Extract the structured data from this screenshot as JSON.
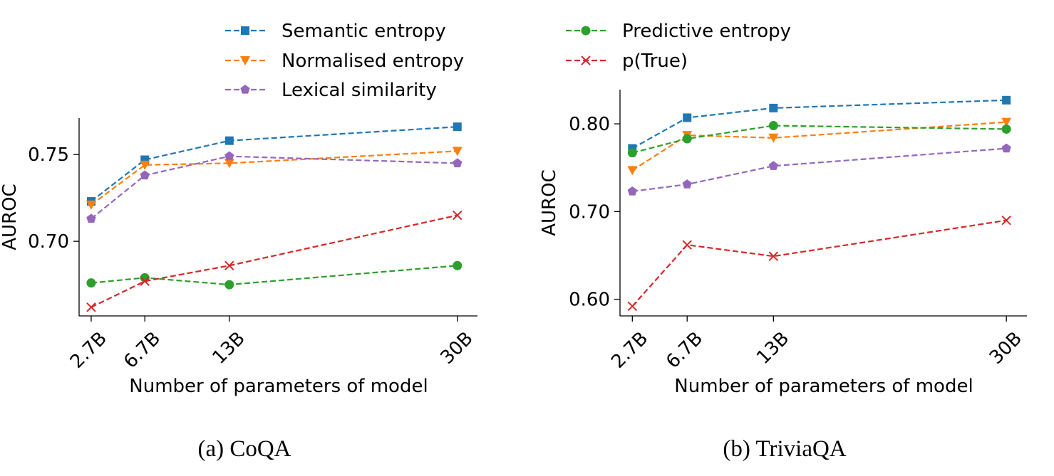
{
  "legend": {
    "entries": [
      {
        "series": "Semantic entropy",
        "color": "#1f77b4",
        "marker": "square"
      },
      {
        "series": "Normalised entropy",
        "color": "#ff7f0e",
        "marker": "triangle-down"
      },
      {
        "series": "Lexical similarity",
        "color": "#9467bd",
        "marker": "pentagon"
      },
      {
        "series": "Predictive entropy",
        "color": "#2ca02c",
        "marker": "circle"
      },
      {
        "series": "p(True)",
        "color": "#d62728",
        "marker": "x"
      }
    ]
  },
  "chart_data": [
    {
      "type": "line",
      "caption": "(a) CoQA",
      "xlabel": "Number of parameters of model",
      "ylabel": "AUROC",
      "x": [
        2.7,
        6.7,
        13,
        30
      ],
      "x_tick_labels": [
        "2.7B",
        "6.7B",
        "13B",
        "30B"
      ],
      "xlim": [
        1.8,
        31.5
      ],
      "ylim": [
        0.657,
        0.771
      ],
      "y_ticks": [
        0.7,
        0.75
      ],
      "y_tick_labels": [
        "0.70",
        "0.75"
      ],
      "grid": false,
      "series": [
        {
          "name": "Semantic entropy",
          "values": [
            0.723,
            0.747,
            0.758,
            0.766
          ]
        },
        {
          "name": "Normalised entropy",
          "values": [
            0.721,
            0.744,
            0.745,
            0.752
          ]
        },
        {
          "name": "Lexical similarity",
          "values": [
            0.713,
            0.738,
            0.749,
            0.745
          ]
        },
        {
          "name": "Predictive entropy",
          "values": [
            0.676,
            0.679,
            0.675,
            0.686
          ]
        },
        {
          "name": "p(True)",
          "values": [
            0.662,
            0.677,
            0.686,
            0.715
          ]
        }
      ]
    },
    {
      "type": "line",
      "caption": "(b) TriviaQA",
      "xlabel": "Number of parameters of model",
      "ylabel": "AUROC",
      "x": [
        2.7,
        6.7,
        13,
        30
      ],
      "x_tick_labels": [
        "2.7B",
        "6.7B",
        "13B",
        "30B"
      ],
      "xlim": [
        1.8,
        31.5
      ],
      "ylim": [
        0.581,
        0.839
      ],
      "y_ticks": [
        0.6,
        0.7,
        0.8
      ],
      "y_tick_labels": [
        "0.60",
        "0.70",
        "0.80"
      ],
      "grid": false,
      "series": [
        {
          "name": "Semantic entropy",
          "values": [
            0.772,
            0.807,
            0.818,
            0.827
          ]
        },
        {
          "name": "Normalised entropy",
          "values": [
            0.747,
            0.787,
            0.784,
            0.802
          ]
        },
        {
          "name": "Lexical similarity",
          "values": [
            0.723,
            0.731,
            0.752,
            0.772
          ]
        },
        {
          "name": "Predictive entropy",
          "values": [
            0.767,
            0.783,
            0.798,
            0.794
          ]
        },
        {
          "name": "p(True)",
          "values": [
            0.592,
            0.662,
            0.649,
            0.69
          ]
        }
      ]
    }
  ]
}
